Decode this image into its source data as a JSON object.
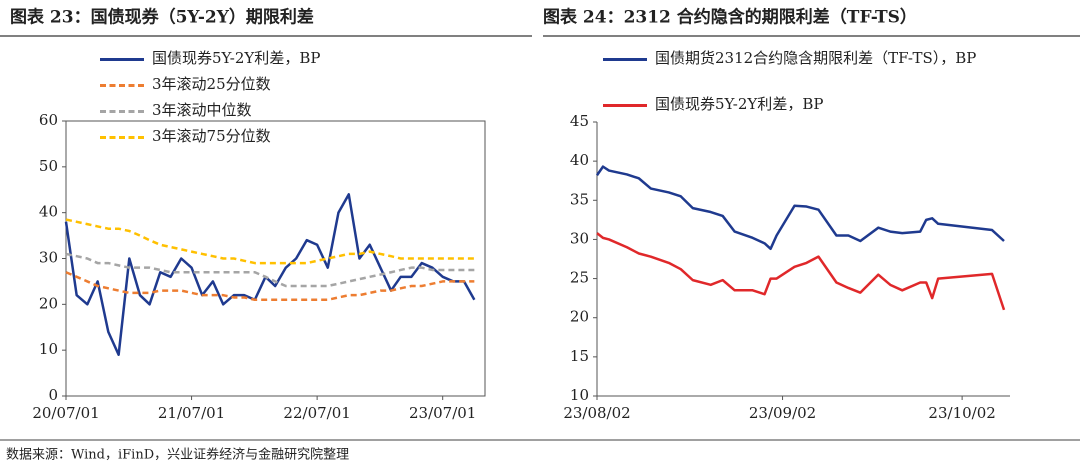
{
  "chart_data": [
    {
      "type": "line",
      "title": "图表 23：国债现券（5Y-2Y）期限利差",
      "x": [
        "20/07/01",
        "20/08/01",
        "20/09/01",
        "20/10/01",
        "20/11/01",
        "20/12/01",
        "21/01/01",
        "21/02/01",
        "21/03/01",
        "21/04/01",
        "21/05/01",
        "21/06/01",
        "21/07/01",
        "21/08/01",
        "21/09/01",
        "21/10/01",
        "21/11/01",
        "21/12/01",
        "22/01/01",
        "22/02/01",
        "22/03/01",
        "22/04/01",
        "22/05/01",
        "22/06/01",
        "22/07/01",
        "22/08/01",
        "22/09/01",
        "22/10/01",
        "22/11/01",
        "22/12/01",
        "23/01/01",
        "23/02/01",
        "23/03/01",
        "23/04/01",
        "23/05/01",
        "23/06/01",
        "23/07/01",
        "23/08/01",
        "23/09/01",
        "23/10/01"
      ],
      "series": [
        {
          "name": "国债现券5Y-2Y利差，BP",
          "color": "#1f3a8f",
          "dash": false,
          "values": [
            38,
            22,
            20,
            25,
            14,
            9,
            30,
            22,
            20,
            27,
            26,
            30,
            28,
            22,
            25,
            20,
            22,
            22,
            21,
            26,
            24,
            28,
            30,
            34,
            33,
            28,
            40,
            44,
            30,
            33,
            28,
            23,
            26,
            26,
            29,
            28,
            26,
            25,
            25,
            21
          ]
        },
        {
          "name": "3年滚动25分位数",
          "color": "#ed7d31",
          "dash": true,
          "values": [
            27,
            26,
            25,
            24,
            23.5,
            23,
            22.5,
            22.5,
            22.5,
            23,
            23,
            23,
            22.5,
            22,
            22,
            22,
            21.5,
            21.5,
            21,
            21,
            21,
            21,
            21,
            21,
            21,
            21,
            21.5,
            22,
            22,
            22.5,
            23,
            23,
            23.5,
            24,
            24,
            24.5,
            25,
            25,
            25,
            25
          ]
        },
        {
          "name": "3年滚动中位数",
          "color": "#a5a5a5",
          "dash": true,
          "values": [
            31,
            30.5,
            30,
            29,
            29,
            28.5,
            28,
            28,
            28,
            27.5,
            27,
            27,
            27,
            27,
            27,
            27,
            27,
            27,
            27,
            26,
            25,
            24,
            24,
            24,
            24,
            24,
            24.5,
            25,
            25.5,
            26,
            26.5,
            27,
            27.5,
            28,
            28,
            27.5,
            27.5,
            27.5,
            27.5,
            27.5
          ]
        },
        {
          "name": "3年滚动75分位数",
          "color": "#ffc000",
          "dash": true,
          "values": [
            38.5,
            38,
            37.5,
            37,
            36.5,
            36.5,
            36,
            35,
            34,
            33,
            32.5,
            32,
            31.5,
            31,
            30.5,
            30,
            30,
            29.5,
            29,
            29,
            29,
            29,
            29,
            29,
            29.5,
            30,
            30.5,
            31,
            31,
            31.5,
            31,
            30.5,
            30,
            30,
            30,
            30,
            30,
            30,
            30,
            30
          ]
        }
      ],
      "xlim": [
        "20/07/01",
        "23/11/01"
      ],
      "xticks": [
        "20/07/01",
        "21/07/01",
        "22/07/01",
        "23/07/01"
      ],
      "ylim": [
        0,
        60
      ],
      "yticks": [
        0,
        10,
        20,
        30,
        40,
        50,
        60
      ],
      "frame": true
    },
    {
      "type": "line",
      "title": "图表 24：2312 合约隐含的期限利差（TF-TS）",
      "x": [
        "23/08/02",
        "23/08/03",
        "23/08/04",
        "23/08/07",
        "23/08/09",
        "23/08/11",
        "23/08/14",
        "23/08/16",
        "23/08/18",
        "23/08/21",
        "23/08/23",
        "23/08/25",
        "23/08/28",
        "23/08/30",
        "23/08/31",
        "23/09/01",
        "23/09/04",
        "23/09/06",
        "23/09/08",
        "23/09/11",
        "23/09/13",
        "23/09/15",
        "23/09/18",
        "23/09/20",
        "23/09/22",
        "23/09/25",
        "23/09/26",
        "23/09/27",
        "23/09/28",
        "23/10/07",
        "23/10/09"
      ],
      "series": [
        {
          "name": "国债期货2312合约隐含期限利差（TF-TS），BP",
          "color": "#1f3a8f",
          "dash": false,
          "values": [
            38.2,
            39.3,
            38.8,
            38.3,
            37.8,
            36.5,
            36,
            35.5,
            34,
            33.5,
            33,
            31,
            30.2,
            29.5,
            28.8,
            30.5,
            34.3,
            34.2,
            33.8,
            30.5,
            30.5,
            29.8,
            31.5,
            31,
            30.8,
            31,
            32.5,
            32.7,
            32,
            31.2,
            29.8
          ]
        },
        {
          "name": "国债现券5Y-2Y利差，BP",
          "color": "#e0282a",
          "dash": false,
          "values": [
            30.8,
            30.2,
            30,
            29,
            28.2,
            27.8,
            27,
            26.2,
            24.8,
            24.2,
            24.8,
            23.5,
            23.5,
            23,
            25,
            25,
            26.5,
            27,
            27.8,
            24.5,
            23.8,
            23.2,
            25.5,
            24.2,
            23.5,
            24.5,
            24.5,
            22.5,
            25,
            25.6,
            21
          ]
        }
      ],
      "xlim": [
        "23/08/02",
        "23/10/10"
      ],
      "xticks": [
        "23/08/02",
        "23/09/02",
        "23/10/02"
      ],
      "ylim": [
        10,
        45
      ],
      "yticks": [
        10,
        15,
        20,
        25,
        30,
        35,
        40,
        45
      ],
      "frame": false
    }
  ],
  "source": "数据来源：Wind，iFinD，兴业证券经济与金融研究院整理"
}
